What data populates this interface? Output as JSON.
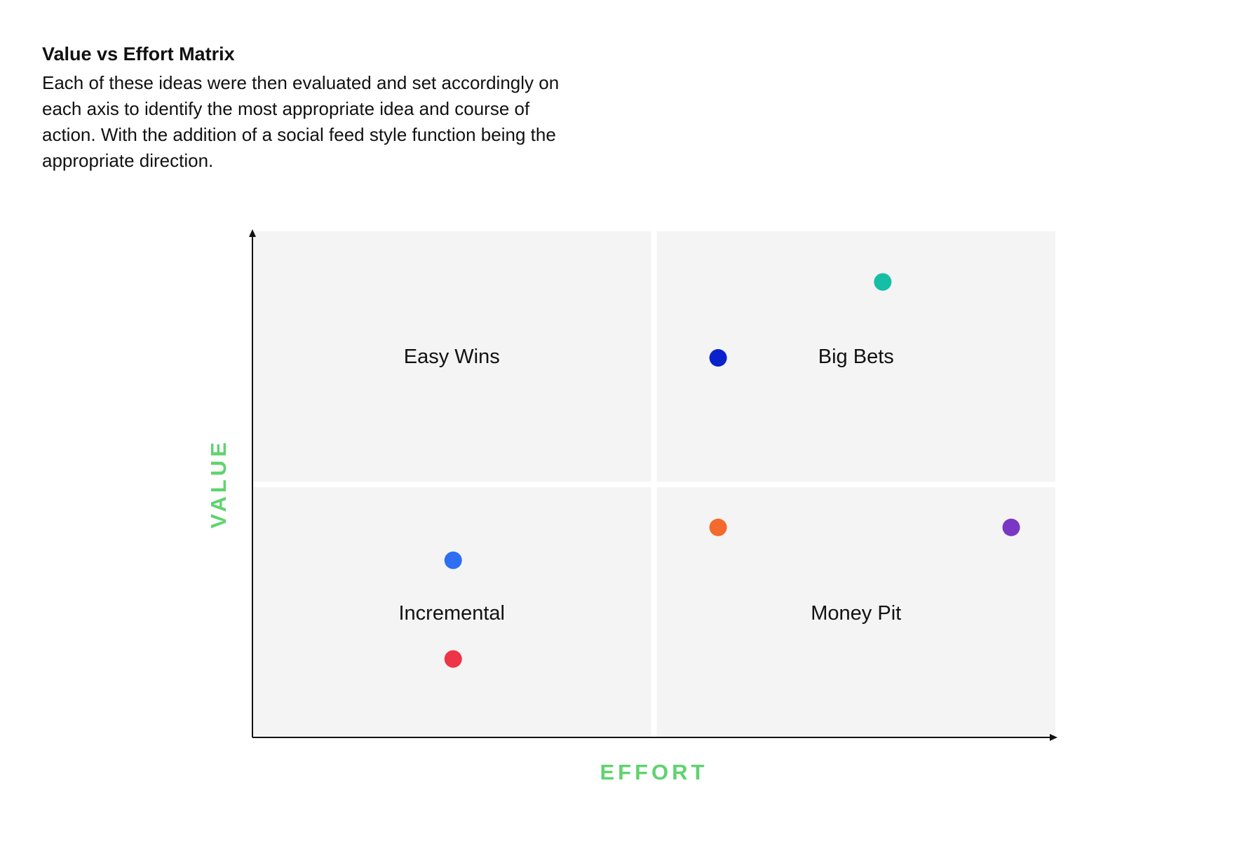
{
  "header": {
    "title": "Value vs Effort Matrix",
    "description": "Each of these ideas were then evaluated and set accordingly on each axis to identify the most appropriate idea and course of action. With the addition of a social feed style function being the appropriate direction."
  },
  "colors": {
    "axis_title": "#5fd36e",
    "quadrant_fill": "#f4f4f4",
    "axis_line": "#111111"
  },
  "chart_data": {
    "type": "scatter",
    "xlabel": "EFFORT",
    "ylabel": "VALUE",
    "xlim": [
      0,
      100
    ],
    "ylim": [
      0,
      100
    ],
    "quadrants": [
      {
        "label": "Easy Wins",
        "position": "top-left"
      },
      {
        "label": "Big Bets",
        "position": "top-right"
      },
      {
        "label": "Incremental",
        "position": "bottom-left"
      },
      {
        "label": "Money Pit",
        "position": "bottom-right"
      }
    ],
    "points": [
      {
        "x": 78.5,
        "y": 90,
        "color": "#15bfa6"
      },
      {
        "x": 58,
        "y": 75,
        "color": "#0a22cc"
      },
      {
        "x": 58,
        "y": 41.5,
        "color": "#f36a2c"
      },
      {
        "x": 94.5,
        "y": 41.5,
        "color": "#7a36c4"
      },
      {
        "x": 25,
        "y": 35,
        "color": "#2d6ff0"
      },
      {
        "x": 25,
        "y": 15.5,
        "color": "#ee3447"
      }
    ]
  }
}
